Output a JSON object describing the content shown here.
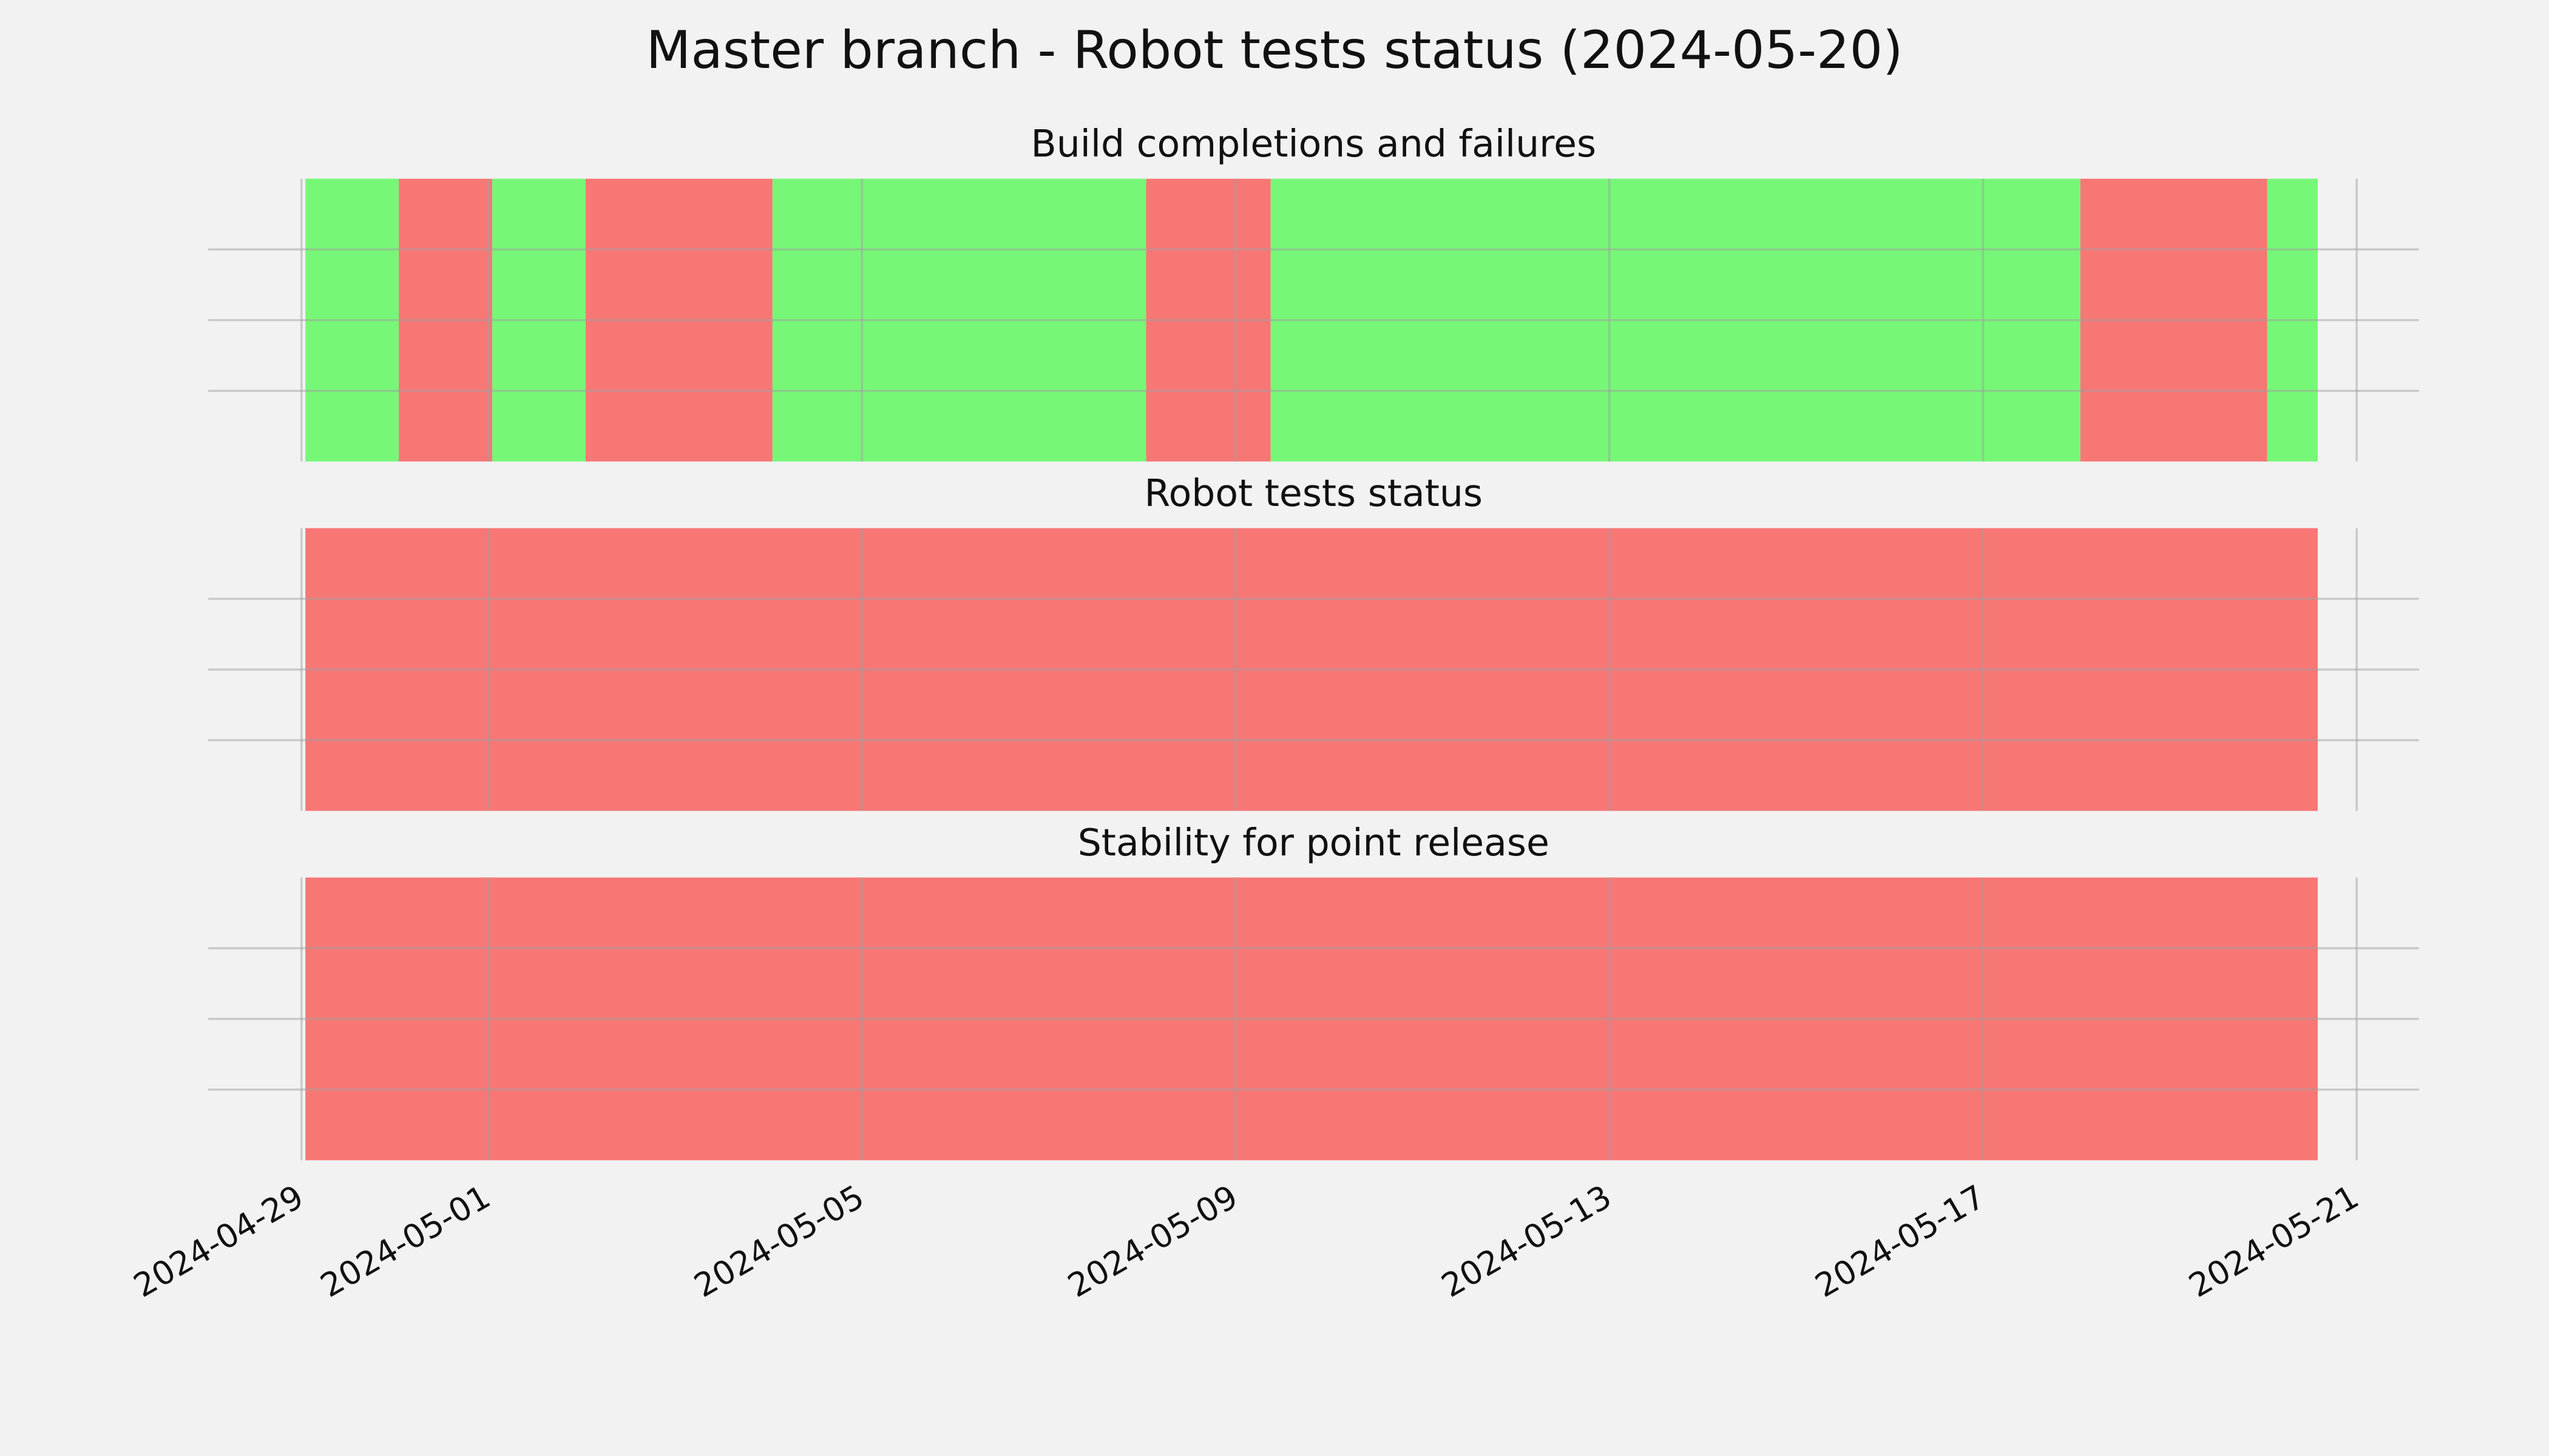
{
  "title": "Master branch - Robot tests status (2024-05-20)",
  "chart_data": [
    {
      "type": "timeline",
      "title": "Build completions and failures",
      "xlim": [
        "2024-04-28",
        "2024-05-21T16:00"
      ],
      "xticks": [
        "2024-04-29",
        "2024-05-01",
        "2024-05-05",
        "2024-05-09",
        "2024-05-13",
        "2024-05-17",
        "2024-05-21"
      ],
      "ylim": [
        0,
        1
      ],
      "yticks": [
        0.25,
        0.5,
        0.75
      ],
      "grid": true,
      "spans": [
        {
          "start": "2024-04-29T01:00",
          "end": "2024-04-30T01:00",
          "color": "#77f777"
        },
        {
          "start": "2024-04-30T01:00",
          "end": "2024-05-01T01:00",
          "color": "#f77775"
        },
        {
          "start": "2024-05-01T01:00",
          "end": "2024-05-02T01:00",
          "color": "#77f777"
        },
        {
          "start": "2024-05-02T01:00",
          "end": "2024-05-04T01:00",
          "color": "#f77775"
        },
        {
          "start": "2024-05-04T01:00",
          "end": "2024-05-08T01:00",
          "color": "#77f777"
        },
        {
          "start": "2024-05-08T01:00",
          "end": "2024-05-09T09:00",
          "color": "#f77775"
        },
        {
          "start": "2024-05-09T09:00",
          "end": "2024-05-18T01:00",
          "color": "#77f777"
        },
        {
          "start": "2024-05-18T01:00",
          "end": "2024-05-20T01:00",
          "color": "#f77775"
        },
        {
          "start": "2024-05-20T01:00",
          "end": "2024-05-20T14:00",
          "color": "#77f777"
        }
      ]
    },
    {
      "type": "timeline",
      "title": "Robot tests status",
      "xlim": [
        "2024-04-28",
        "2024-05-21T16:00"
      ],
      "xticks": [
        "2024-04-29",
        "2024-05-01",
        "2024-05-05",
        "2024-05-09",
        "2024-05-13",
        "2024-05-17",
        "2024-05-21"
      ],
      "ylim": [
        0,
        1
      ],
      "yticks": [
        0.25,
        0.5,
        0.75
      ],
      "grid": true,
      "spans": [
        {
          "start": "2024-04-29T01:00",
          "end": "2024-05-20T14:00",
          "color": "#f77775"
        }
      ]
    },
    {
      "type": "timeline",
      "title": "Stability for point release",
      "xlim": [
        "2024-04-28",
        "2024-05-21T16:00"
      ],
      "xticks": [
        "2024-04-29",
        "2024-05-01",
        "2024-05-05",
        "2024-05-09",
        "2024-05-13",
        "2024-05-17",
        "2024-05-21"
      ],
      "ylim": [
        0,
        1
      ],
      "yticks": [
        0.25,
        0.5,
        0.75
      ],
      "grid": true,
      "spans": [
        {
          "start": "2024-04-29T01:00",
          "end": "2024-05-20T14:00",
          "color": "#f77775"
        }
      ]
    }
  ]
}
